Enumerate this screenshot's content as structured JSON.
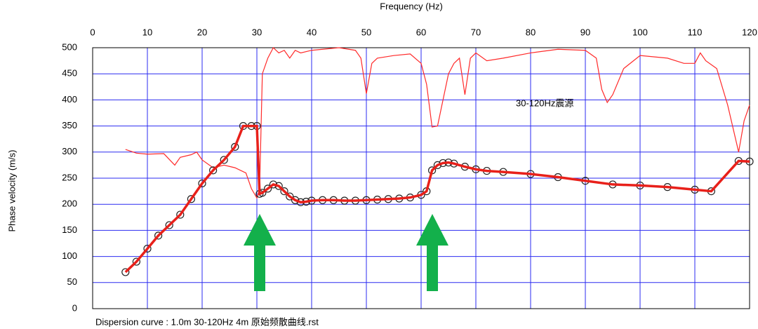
{
  "chart_data": {
    "type": "line",
    "x_label": "Frequency (Hz)",
    "y_label": "Phase velocity (m/s)",
    "annotation": "30-120Hz震源",
    "caption": "Dispersion curve : 1.0m  30-120Hz  4m  原始频散曲线.rst",
    "xlim": [
      0,
      120
    ],
    "xticks": [
      0,
      10,
      20,
      30,
      40,
      50,
      60,
      70,
      80,
      90,
      100,
      110,
      120
    ],
    "ylim": [
      0,
      500
    ],
    "yticks": [
      0,
      50,
      100,
      150,
      200,
      250,
      300,
      350,
      400,
      450,
      500
    ],
    "grid": true,
    "grid_color": "#2b2bf0",
    "series": [
      {
        "color": "#ff2a2a",
        "markers": false,
        "x": [
          6,
          8,
          10,
          13,
          15,
          16,
          18,
          19,
          20,
          22,
          24,
          26,
          28,
          29,
          30,
          30.5,
          31,
          32,
          33,
          34,
          35,
          36,
          37,
          38,
          40,
          42,
          45,
          48,
          49,
          50,
          51,
          52,
          55,
          58,
          60,
          61,
          62,
          63,
          64,
          65,
          66,
          67,
          68,
          69,
          70,
          72,
          75,
          80,
          85,
          90,
          92,
          93,
          94,
          95,
          97,
          100,
          105,
          108,
          110,
          111,
          112,
          114,
          116,
          118,
          119,
          120
        ],
        "values": [
          305,
          298,
          296,
          297,
          275,
          290,
          295,
          300,
          285,
          270,
          275,
          270,
          260,
          230,
          212,
          230,
          450,
          480,
          500,
          490,
          495,
          480,
          495,
          490,
          495,
          497,
          500,
          495,
          480,
          412,
          470,
          480,
          485,
          488,
          470,
          430,
          348,
          350,
          400,
          450,
          470,
          480,
          410,
          480,
          490,
          475,
          480,
          490,
          497,
          495,
          480,
          420,
          395,
          410,
          460,
          485,
          480,
          470,
          470,
          490,
          475,
          460,
          390,
          300,
          360,
          390
        ]
      },
      {
        "color": "#e8201a",
        "markers": true,
        "x": [
          6,
          8,
          10,
          12,
          14,
          16,
          18,
          20,
          22,
          24,
          26,
          27.5,
          29,
          30,
          30.5,
          31,
          32,
          33,
          34,
          35,
          36,
          37,
          38,
          39,
          40,
          42,
          44,
          46,
          48,
          50,
          52,
          54,
          56,
          58,
          60,
          61,
          62,
          63,
          64,
          65,
          66,
          68,
          70,
          72,
          75,
          80,
          85,
          90,
          95,
          100,
          105,
          110,
          113,
          118,
          120
        ],
        "values": [
          70,
          90,
          115,
          140,
          160,
          180,
          210,
          240,
          265,
          285,
          310,
          350,
          350,
          350,
          220,
          222,
          230,
          238,
          235,
          225,
          215,
          208,
          204,
          205,
          207,
          208,
          208,
          207,
          207,
          208,
          209,
          210,
          211,
          213,
          218,
          225,
          265,
          275,
          279,
          280,
          278,
          272,
          267,
          264,
          262,
          258,
          252,
          245,
          238,
          236,
          233,
          228,
          225,
          283,
          282
        ]
      }
    ]
  }
}
